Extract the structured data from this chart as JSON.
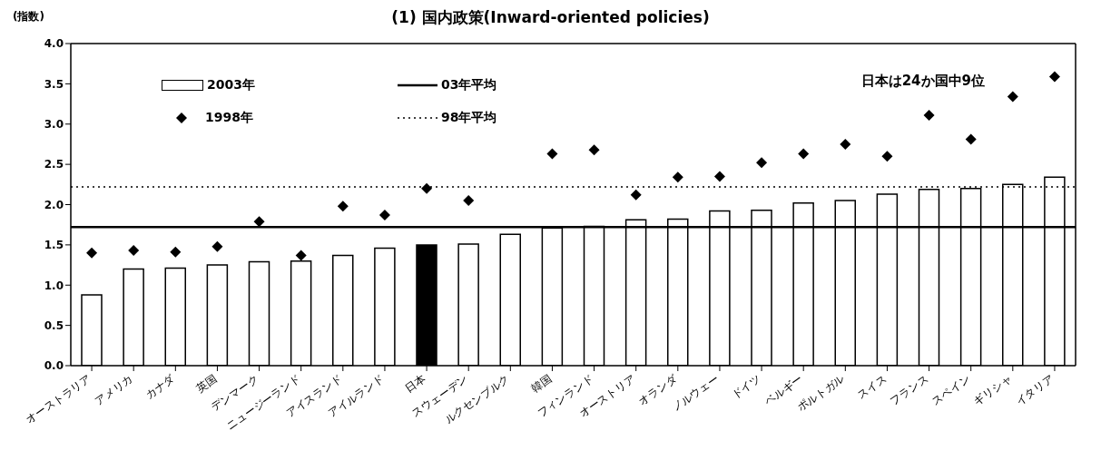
{
  "chart_data": {
    "type": "bar",
    "title": "(1) 国内政策(Inward-oriented policies)",
    "ylabel": "(指数)",
    "categories": [
      "オーストラリア",
      "アメリカ",
      "カナダ",
      "英国",
      "デンマーク",
      "ニュージーランド",
      "アイスランド",
      "アイルランド",
      "日本",
      "スウェーデン",
      "ルクセンブルク",
      "韓国",
      "フィンランド",
      "オーストリア",
      "オランダ",
      "ノルウェー",
      "ドイツ",
      "ベルギー",
      "ポルトガル",
      "スイス",
      "フランス",
      "スペイン",
      "ギリシャ",
      "イタリア"
    ],
    "series": [
      {
        "name": "2003年",
        "color": "#ffffff",
        "colors": [
          "#ffffff",
          "#ffffff",
          "#ffffff",
          "#ffffff",
          "#ffffff",
          "#ffffff",
          "#ffffff",
          "#ffffff",
          "#000000",
          "#ffffff",
          "#ffffff",
          "#ffffff",
          "#ffffff",
          "#ffffff",
          "#ffffff",
          "#ffffff",
          "#ffffff",
          "#ffffff",
          "#ffffff",
          "#ffffff",
          "#ffffff",
          "#ffffff",
          "#ffffff",
          "#ffffff"
        ],
        "values": [
          0.88,
          1.2,
          1.21,
          1.25,
          1.29,
          1.3,
          1.37,
          1.46,
          1.5,
          1.51,
          1.63,
          1.71,
          1.73,
          1.81,
          1.82,
          1.92,
          1.93,
          2.02,
          2.05,
          2.13,
          2.19,
          2.2,
          2.25,
          2.34
        ]
      },
      {
        "name": "1998年",
        "type": "scatter",
        "color": "#000000",
        "marker": "diamond",
        "values": [
          1.4,
          1.43,
          1.41,
          1.48,
          1.79,
          1.37,
          1.98,
          1.87,
          2.2,
          2.05,
          null,
          2.63,
          2.68,
          2.12,
          2.34,
          2.35,
          2.52,
          2.63,
          2.75,
          2.6,
          3.11,
          2.81,
          3.34,
          3.59
        ]
      }
    ],
    "ref_lines": [
      {
        "axis": "y",
        "value": 1.72,
        "label": "03年平均",
        "color": "#000000",
        "line_style": "solid"
      },
      {
        "axis": "y",
        "value": 2.22,
        "label": "98年平均",
        "color": "#000000",
        "line_style": "dotted"
      }
    ],
    "annotations": [
      "日本は24か国中9位"
    ],
    "ylim": [
      0,
      4
    ],
    "yticks": [
      {
        "value": 0,
        "label": "0.0"
      },
      {
        "value": 0.5,
        "label": "0.5"
      },
      {
        "value": 1,
        "label": "1.0"
      },
      {
        "value": 1.5,
        "label": "1.5"
      },
      {
        "value": 2,
        "label": "2.0"
      },
      {
        "value": 2.5,
        "label": "2.5"
      },
      {
        "value": 3,
        "label": "3.0"
      },
      {
        "value": 3.5,
        "label": "3.5"
      },
      {
        "value": 4,
        "label": "4.0"
      }
    ],
    "grid": false,
    "legend": "top left"
  }
}
